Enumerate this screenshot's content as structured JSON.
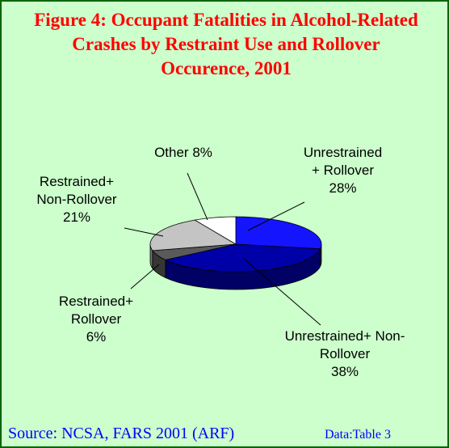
{
  "chart_data": {
    "type": "pie3d",
    "title": "Figure 4: Occupant Fatalities in Alcohol-Related Crashes by Restraint Use and Rollover Occurence, 2001",
    "categories": [
      "Unrestrained + Rollover",
      "Unrestrained+ Non-Rollover",
      "Restrained+ Rollover",
      "Restrained+ Non-Rollover",
      "Other"
    ],
    "values": [
      28,
      38,
      6,
      21,
      8
    ],
    "value_labels": [
      "28%",
      "38%",
      "6%",
      "21%",
      "8%"
    ],
    "colors": [
      "#1414ff",
      "#0000a8",
      "#5a5a5a",
      "#c4c4c4",
      "#ffffff"
    ],
    "source": "Source: NCSA, FARS 2001 (ARF)",
    "note": "Data:Table 3"
  }
}
